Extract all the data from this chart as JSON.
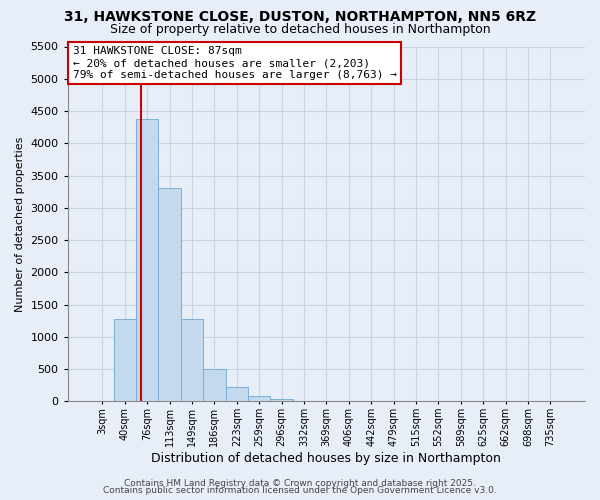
{
  "title_line1": "31, HAWKSTONE CLOSE, DUSTON, NORTHAMPTON, NN5 6RZ",
  "title_line2": "Size of property relative to detached houses in Northampton",
  "xlabel": "Distribution of detached houses by size in Northampton",
  "ylabel": "Number of detached properties",
  "bar_labels": [
    "3sqm",
    "40sqm",
    "76sqm",
    "113sqm",
    "149sqm",
    "186sqm",
    "223sqm",
    "259sqm",
    "296sqm",
    "332sqm",
    "369sqm",
    "406sqm",
    "442sqm",
    "479sqm",
    "515sqm",
    "552sqm",
    "589sqm",
    "625sqm",
    "662sqm",
    "698sqm",
    "735sqm"
  ],
  "bar_values": [
    0,
    1270,
    4380,
    3300,
    1280,
    500,
    230,
    90,
    30,
    10,
    5,
    2,
    0,
    0,
    0,
    0,
    0,
    0,
    0,
    0,
    0
  ],
  "bar_color": "#c5d9ee",
  "bar_edge_color": "#7aafd4",
  "vline_color": "#cc0000",
  "annotation_title": "31 HAWKSTONE CLOSE: 87sqm",
  "annotation_line2": "← 20% of detached houses are smaller (2,203)",
  "annotation_line3": "79% of semi-detached houses are larger (8,763) →",
  "annotation_box_color": "#ffffff",
  "annotation_box_edge": "#cc0000",
  "ylim": [
    0,
    5500
  ],
  "yticks": [
    0,
    500,
    1000,
    1500,
    2000,
    2500,
    3000,
    3500,
    4000,
    4500,
    5000,
    5500
  ],
  "grid_color": "#c5d5e8",
  "bg_color": "#e8eef8",
  "footnote1": "Contains HM Land Registry data © Crown copyright and database right 2025.",
  "footnote2": "Contains public sector information licensed under the Open Government Licence v3.0."
}
